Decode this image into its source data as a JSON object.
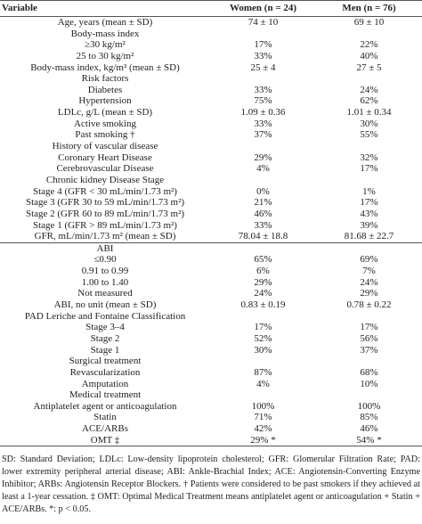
{
  "table": {
    "header": [
      "Variable",
      "Women (n = 24)",
      "Men (n = 76)"
    ],
    "sections": [
      [
        {
          "cells": [
            "Age, years (mean ± SD)",
            "74 ± 10",
            "69 ± 10"
          ]
        },
        {
          "cells": [
            "Body-mass index"
          ]
        },
        {
          "cells": [
            "≥30 kg/m²",
            "17%",
            "22%"
          ]
        },
        {
          "cells": [
            "25 to 30 kg/m²",
            "33%",
            "40%"
          ]
        },
        {
          "cells": [
            "Body-mass index, kg/m² (mean ± SD)",
            "25 ± 4",
            "27 ± 5"
          ]
        },
        {
          "cells": [
            "Risk factors"
          ]
        },
        {
          "cells": [
            "Diabetes",
            "33%",
            "24%"
          ]
        },
        {
          "cells": [
            "Hypertension",
            "75%",
            "62%"
          ]
        },
        {
          "cells": [
            "LDLc, g/L (mean ± SD)",
            "1.09 ± 0.36",
            "1.01 ± 0.34"
          ]
        },
        {
          "cells": [
            "Active smoking",
            "33%",
            "30%"
          ]
        },
        {
          "cells": [
            "Past smoking †",
            "37%",
            "55%"
          ]
        },
        {
          "cells": [
            "History of vascular disease"
          ]
        },
        {
          "cells": [
            "Coronary Heart Disease",
            "29%",
            "32%"
          ]
        },
        {
          "cells": [
            "Cerebrovascular Disease",
            "4%",
            "17%"
          ]
        },
        {
          "cells": [
            "Chronic kidney Disease Stage"
          ]
        },
        {
          "cells": [
            "Stage 4 (GFR < 30 mL/min/1.73 m²)",
            "0%",
            "1%"
          ]
        },
        {
          "cells": [
            "Stage 3 (GFR 30 to 59 mL/min/1.73 m²)",
            "21%",
            "17%"
          ]
        },
        {
          "cells": [
            "Stage 2 (GFR 60 to 89 mL/min/1.73 m²)",
            "46%",
            "43%"
          ]
        },
        {
          "cells": [
            "Stage 1 (GFR > 89 mL/min/1.73 m²)",
            "33%",
            "39%"
          ]
        },
        {
          "cells": [
            "GFR, mL/min/1.73 m² (mean ± SD)",
            "78.04 ± 18.8",
            "81.68 ± 22.7"
          ]
        }
      ],
      [
        {
          "cells": [
            "ABI"
          ]
        },
        {
          "cells": [
            "≤0.90",
            "65%",
            "69%"
          ]
        },
        {
          "cells": [
            "0.91 to 0.99",
            "6%",
            "7%"
          ]
        },
        {
          "cells": [
            "1.00 to 1.40",
            "29%",
            "24%"
          ]
        },
        {
          "cells": [
            "Not measured",
            "24%",
            "29%"
          ]
        },
        {
          "cells": [
            "ABI, no unit (mean ± SD)",
            "0.83 ± 0.19",
            "0.78 ± 0.22"
          ]
        },
        {
          "cells": [
            "PAD Leriche and Fontaine Classification"
          ]
        },
        {
          "cells": [
            "Stage 3–4",
            "17%",
            "17%"
          ]
        },
        {
          "cells": [
            "Stage 2",
            "52%",
            "56%"
          ]
        },
        {
          "cells": [
            "Stage 1",
            "30%",
            "37%"
          ]
        },
        {
          "cells": [
            "Surgical treatment"
          ]
        },
        {
          "cells": [
            "Revascularization",
            "87%",
            "68%"
          ]
        },
        {
          "cells": [
            "Amputation",
            "4%",
            "10%"
          ]
        },
        {
          "cells": [
            "Medical treatment"
          ]
        },
        {
          "cells": [
            "Antiplatelet agent or anticoagulation",
            "100%",
            "100%"
          ]
        },
        {
          "cells": [
            "Statin",
            "71%",
            "85%"
          ]
        },
        {
          "cells": [
            "ACE/ARBs",
            "42%",
            "46%"
          ]
        },
        {
          "cells": [
            "OMT ‡",
            "29% *",
            "54% *"
          ]
        }
      ]
    ],
    "footnote": "SD: Standard Deviation; LDLc: Low-density lipoprotein cholesterol; GFR: Glomerular Filtration Rate; PAD: lower extremity peripheral arterial disease; ABI: Ankle-Brachial Index; ACE: Angiotensin-Converting Enzyme Inhibitor; ARBs: Angiotensin Receptor Blockers. † Patients were considered to be past smokers if they achieved at least a 1-year cessation. ‡ OMT: Optimal Medical Treatment means antiplatelet agent or anticoagulation + Statin + ACE/ARBs. *: p < 0.05."
  }
}
